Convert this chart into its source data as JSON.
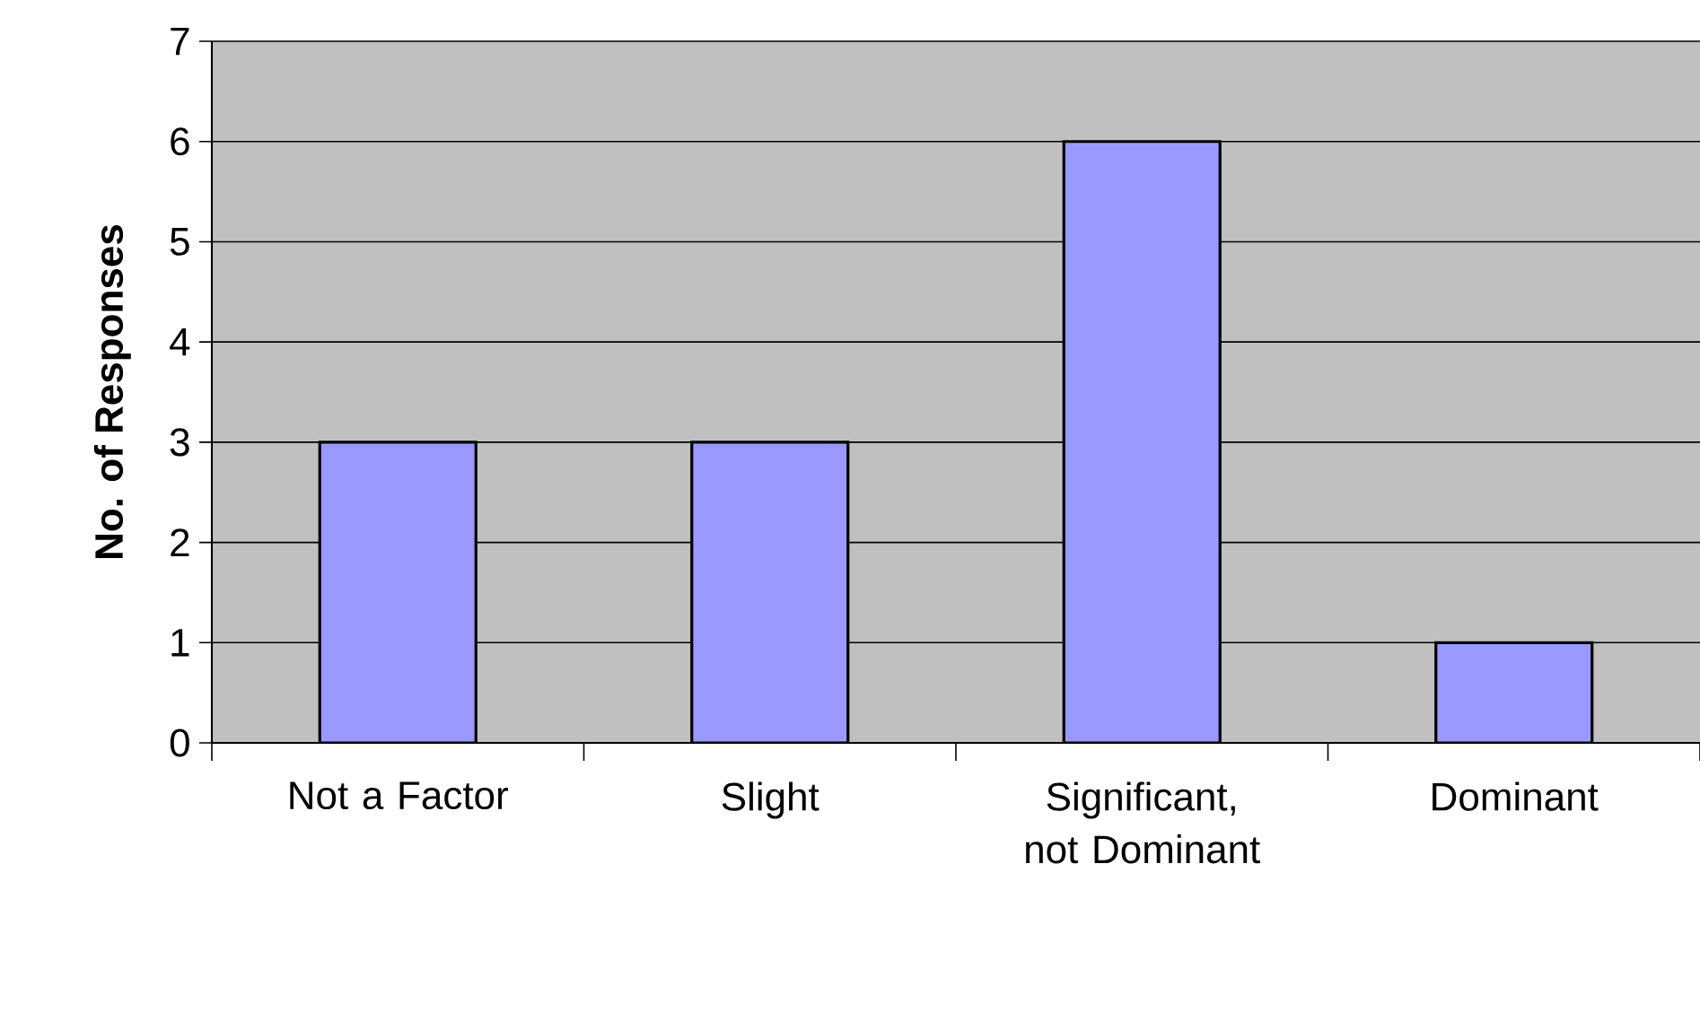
{
  "chart_data": {
    "type": "bar",
    "ylabel": "No. of Responses",
    "categories": [
      "Not a Factor",
      "Slight",
      "Significant, not Dominant",
      "Dominant"
    ],
    "values": [
      3,
      3,
      6,
      1
    ],
    "color": "#9999ff",
    "ylim": [
      0,
      7
    ],
    "yticks": [
      0,
      1,
      2,
      3,
      4,
      5,
      6,
      7
    ],
    "grid": "y"
  }
}
